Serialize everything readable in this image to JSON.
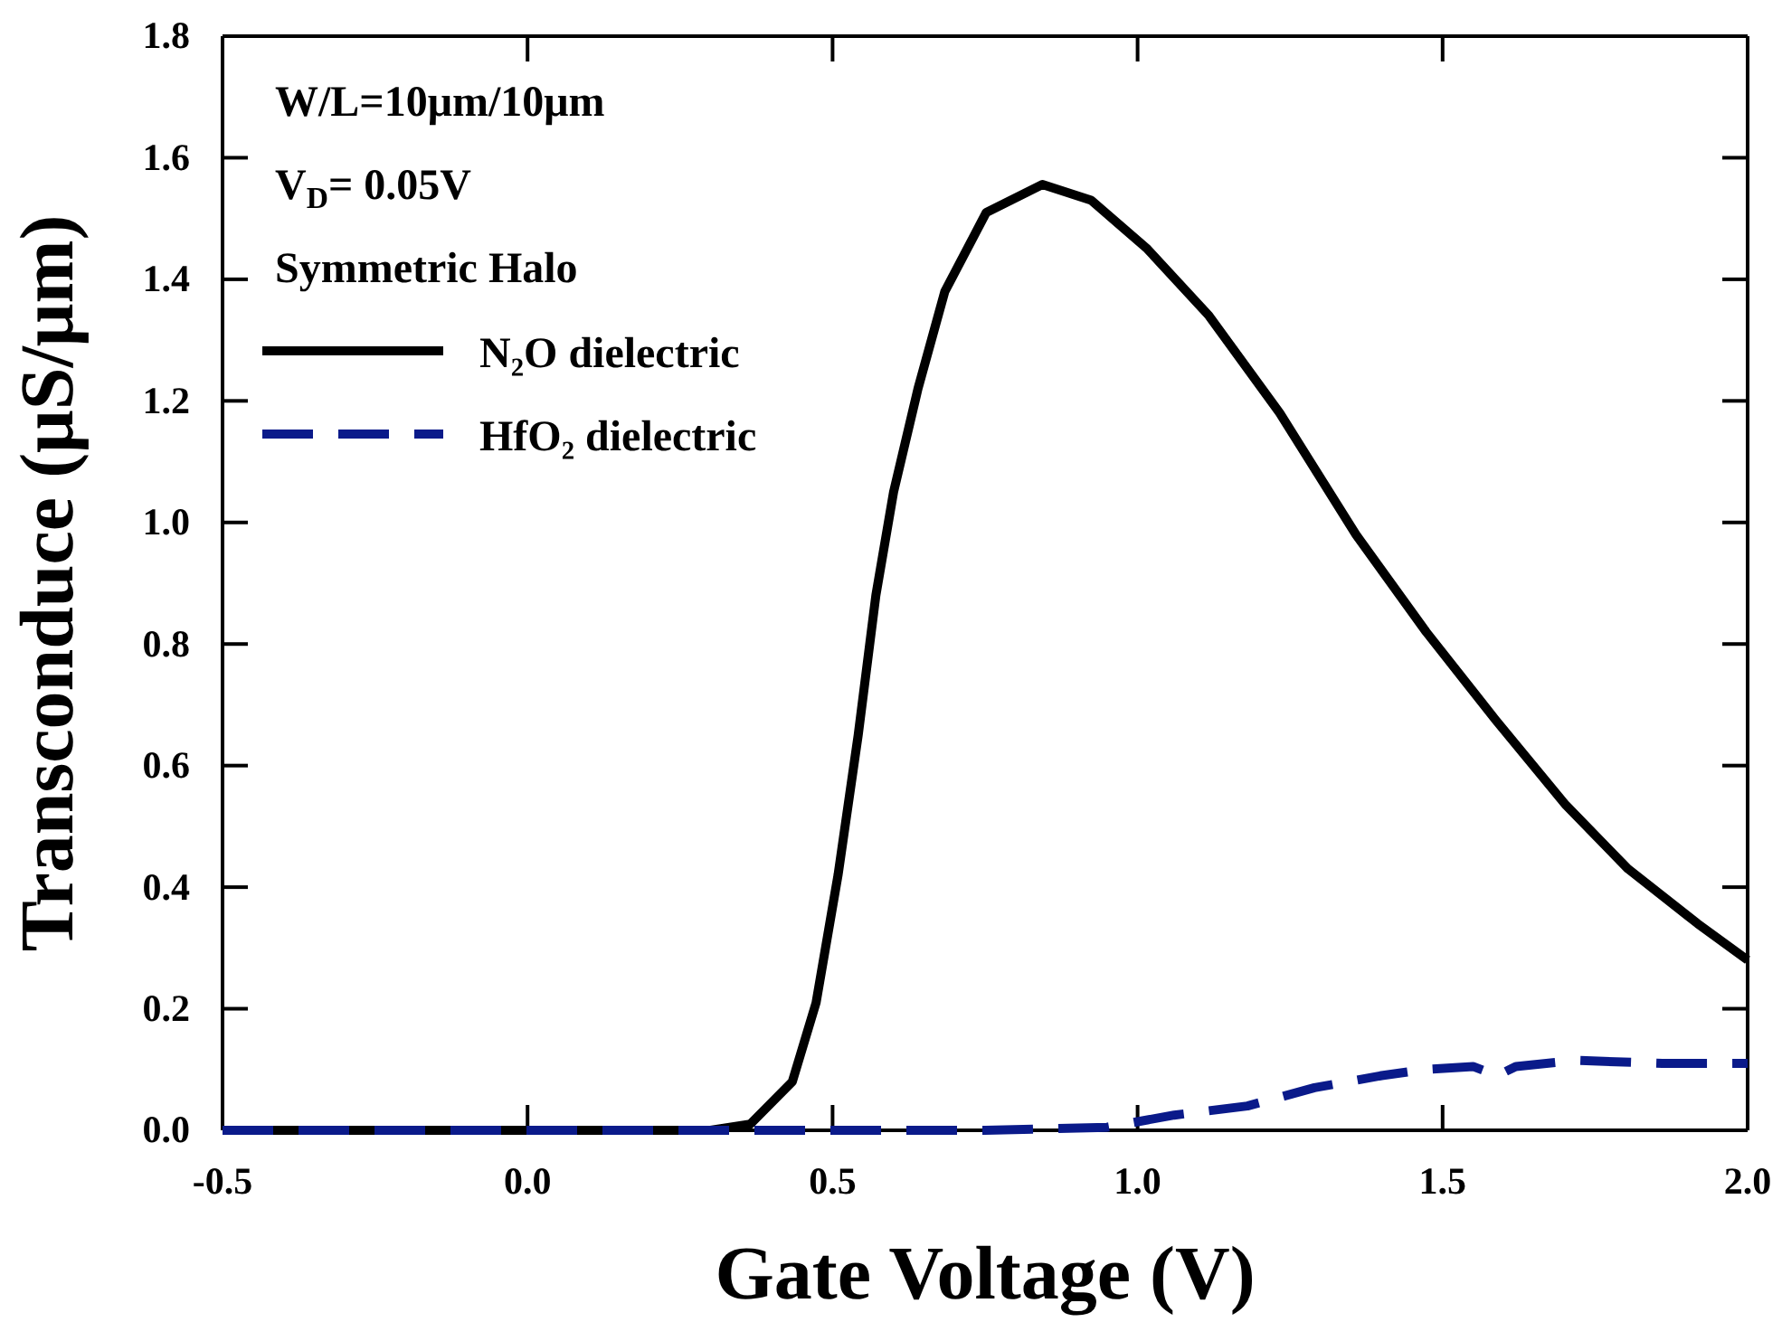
{
  "chart_data": {
    "type": "line",
    "xlabel": "Gate Voltage (V)",
    "ylabel": "Transconduce (μS/μm)",
    "annotations": [
      "W/L=10μm/10μm",
      "V$_{D}$= 0.05V",
      "Symmetric Halo"
    ],
    "xlim": [
      -0.5,
      2.0
    ],
    "xticks": [
      {
        "value": -0.5,
        "label": "-0.5"
      },
      {
        "value": 0,
        "label": "0.0"
      },
      {
        "value": 0.5,
        "label": "0.5"
      },
      {
        "value": 1,
        "label": "1.0"
      },
      {
        "value": 1.5,
        "label": "1.5"
      },
      {
        "value": 2,
        "label": "2.0"
      }
    ],
    "ylim": [
      0,
      1.8
    ],
    "yticks": [
      {
        "value": 0,
        "label": "0.0"
      },
      {
        "value": 0.2,
        "label": "0.2"
      },
      {
        "value": 0.4,
        "label": "0.4"
      },
      {
        "value": 0.6,
        "label": "0.6"
      },
      {
        "value": 0.8,
        "label": "0.8"
      },
      {
        "value": 1,
        "label": "1.0"
      },
      {
        "value": 1.2,
        "label": "1.2"
      },
      {
        "value": 1.4,
        "label": "1.4"
      },
      {
        "value": 1.6,
        "label": "1.6"
      },
      {
        "value": 1.8,
        "label": "1.8"
      }
    ],
    "grid": false,
    "legend": "top left",
    "series": [
      {
        "name": "N₂O dielectric",
        "color": "#000000",
        "line_style": "solid",
        "x": [
          -0.5,
          0.0,
          0.3,
          0.365,
          0.434,
          0.473,
          0.509,
          0.542,
          0.571,
          0.6,
          0.64,
          0.684,
          0.752,
          0.844,
          0.924,
          1.016,
          1.117,
          1.233,
          1.358,
          1.473,
          1.587,
          1.702,
          1.804,
          1.918,
          2.0
        ],
        "values": [
          0,
          0,
          0,
          0.01,
          0.08,
          0.21,
          0.42,
          0.65,
          0.88,
          1.05,
          1.22,
          1.38,
          1.51,
          1.556,
          1.53,
          1.45,
          1.34,
          1.18,
          0.98,
          0.82,
          0.675,
          0.535,
          0.43,
          0.34,
          0.28
        ]
      },
      {
        "name": "HfO₂ dielectric",
        "color": "#0a1a8a",
        "line_style": "dashed",
        "x": [
          -0.5,
          0.0,
          0.5,
          0.75,
          0.95,
          1.06,
          1.18,
          1.29,
          1.4,
          1.47,
          1.55,
          1.59,
          1.62,
          1.72,
          1.86,
          2.0
        ],
        "values": [
          0,
          0,
          0,
          0,
          0.005,
          0.025,
          0.04,
          0.07,
          0.09,
          0.1,
          0.105,
          0.09,
          0.105,
          0.115,
          0.11,
          0.11
        ]
      }
    ]
  }
}
